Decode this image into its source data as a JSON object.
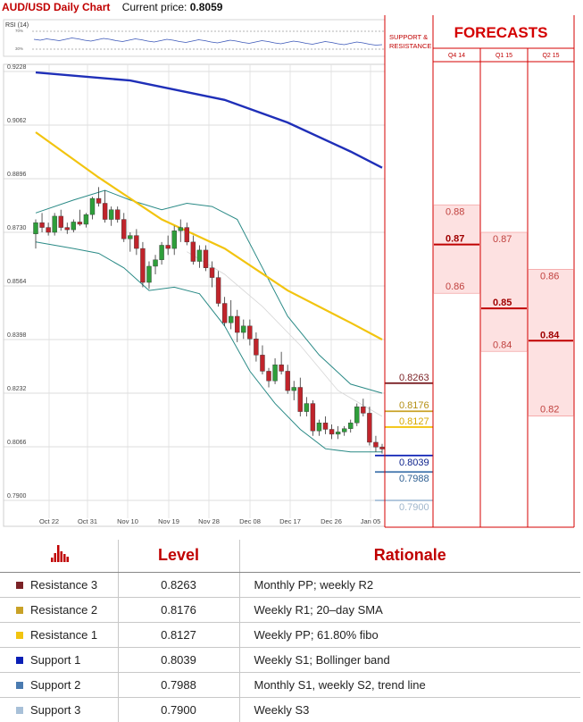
{
  "header": {
    "title": "AUD/USD Daily Chart",
    "price_label": "Current price:",
    "price_value": "0.8059"
  },
  "rsi": {
    "label": "RSI (14)",
    "upper": "70%",
    "lower": "30%"
  },
  "sr_header": [
    "SUPPORT &",
    "RESISTANCE"
  ],
  "forecasts": {
    "title": "FORECASTS",
    "periods": [
      "Q4 14",
      "Q1 15",
      "Q2 15"
    ],
    "columns": [
      {
        "period": "Q4 14",
        "high": "0.88",
        "mid": "0.87",
        "low": "0.86",
        "high_v": 0.8815,
        "mid_v": 0.8698,
        "low_v": 0.858
      },
      {
        "period": "Q1 15",
        "high": "0.87",
        "mid": "0.85",
        "low": "0.84",
        "high_v": 0.873,
        "mid_v": 0.85,
        "low_v": 0.84
      },
      {
        "period": "Q2 15",
        "high": "0.86",
        "mid": "0.84",
        "low": "0.82",
        "high_v": 0.8615,
        "mid_v": 0.84,
        "low_v": 0.82
      }
    ]
  },
  "levels": [
    {
      "name": "Resistance 3",
      "value": "0.8263",
      "rationale": "Monthly PP; weekly R2",
      "color": "#7b2226",
      "text_color": "#7b2226"
    },
    {
      "name": "Resistance 2",
      "value": "0.8176",
      "rationale": "Weekly R1; 20–day SMA",
      "color": "#c9a227",
      "text_color": "#b48f14"
    },
    {
      "name": "Resistance 1",
      "value": "0.8127",
      "rationale": "Weekly PP; 61.80% fibo",
      "color": "#f2c40f",
      "text_color": "#d6a800"
    },
    {
      "name": "Support 1",
      "value": "0.8039",
      "rationale": "Weekly S1; Bollinger band",
      "color": "#0a1fb5",
      "text_color": "#0a1f8a"
    },
    {
      "name": "Support 2",
      "value": "0.7988",
      "rationale": "Monthly S1, weekly S2, trend line",
      "color": "#4a7bb0",
      "text_color": "#2e5f92"
    },
    {
      "name": "Support 3",
      "value": "0.7900",
      "rationale": "Weekly S3",
      "color": "#a8c0d8",
      "text_color": "#9fb6cc"
    }
  ],
  "table": {
    "level_header": "Level",
    "rationale_header": "Rationale",
    "icon": "bar-chart-icon"
  },
  "chart_data": {
    "type": "candlestick",
    "title": "AUD/USD Daily Chart",
    "ylim": [
      0.79,
      0.9228
    ],
    "y_ticks": [
      "0.9228",
      "0.9062",
      "0.8896",
      "0.8730",
      "0.8564",
      "0.8398",
      "0.8232",
      "0.8066",
      "0.7900"
    ],
    "x_ticks": [
      "Oct 22",
      "Oct 31",
      "Nov 10",
      "Nov 19",
      "Nov 28",
      "Dec 08",
      "Dec 17",
      "Dec 26",
      "Jan 05"
    ],
    "candles": [
      [
        0.8725,
        0.877,
        0.868,
        0.876
      ],
      [
        0.876,
        0.879,
        0.873,
        0.8745
      ],
      [
        0.8745,
        0.876,
        0.872,
        0.873
      ],
      [
        0.873,
        0.879,
        0.872,
        0.878
      ],
      [
        0.878,
        0.88,
        0.8735,
        0.8745
      ],
      [
        0.8745,
        0.876,
        0.8725,
        0.8738
      ],
      [
        0.8738,
        0.877,
        0.873,
        0.8762
      ],
      [
        0.8762,
        0.88,
        0.875,
        0.8755
      ],
      [
        0.8755,
        0.879,
        0.8745,
        0.8785
      ],
      [
        0.8785,
        0.884,
        0.877,
        0.8835
      ],
      [
        0.8835,
        0.887,
        0.881,
        0.882
      ],
      [
        0.882,
        0.886,
        0.876,
        0.877
      ],
      [
        0.877,
        0.881,
        0.875,
        0.88
      ],
      [
        0.88,
        0.881,
        0.876,
        0.877
      ],
      [
        0.877,
        0.879,
        0.87,
        0.871
      ],
      [
        0.871,
        0.873,
        0.867,
        0.872
      ],
      [
        0.872,
        0.874,
        0.866,
        0.868
      ],
      [
        0.868,
        0.87,
        0.856,
        0.8575
      ],
      [
        0.8575,
        0.864,
        0.8555,
        0.8625
      ],
      [
        0.8625,
        0.866,
        0.86,
        0.8645
      ],
      [
        0.8645,
        0.87,
        0.863,
        0.869
      ],
      [
        0.869,
        0.872,
        0.866,
        0.868
      ],
      [
        0.868,
        0.875,
        0.866,
        0.8735
      ],
      [
        0.8735,
        0.877,
        0.87,
        0.8745
      ],
      [
        0.8745,
        0.876,
        0.869,
        0.87
      ],
      [
        0.87,
        0.872,
        0.863,
        0.864
      ],
      [
        0.864,
        0.869,
        0.862,
        0.8675
      ],
      [
        0.8675,
        0.869,
        0.861,
        0.862
      ],
      [
        0.862,
        0.864,
        0.856,
        0.859
      ],
      [
        0.859,
        0.861,
        0.85,
        0.851
      ],
      [
        0.851,
        0.853,
        0.844,
        0.845
      ],
      [
        0.845,
        0.852,
        0.843,
        0.847
      ],
      [
        0.847,
        0.849,
        0.839,
        0.842
      ],
      [
        0.842,
        0.846,
        0.84,
        0.844
      ],
      [
        0.844,
        0.846,
        0.838,
        0.84
      ],
      [
        0.84,
        0.842,
        0.833,
        0.835
      ],
      [
        0.835,
        0.838,
        0.829,
        0.83
      ],
      [
        0.83,
        0.831,
        0.825,
        0.827
      ],
      [
        0.827,
        0.834,
        0.826,
        0.832
      ],
      [
        0.832,
        0.836,
        0.829,
        0.83
      ],
      [
        0.83,
        0.832,
        0.823,
        0.824
      ],
      [
        0.824,
        0.827,
        0.821,
        0.825
      ],
      [
        0.825,
        0.828,
        0.816,
        0.8175
      ],
      [
        0.8175,
        0.822,
        0.816,
        0.82
      ],
      [
        0.82,
        0.821,
        0.81,
        0.8115
      ],
      [
        0.8115,
        0.815,
        0.81,
        0.814
      ],
      [
        0.814,
        0.816,
        0.8105,
        0.812
      ],
      [
        0.812,
        0.8135,
        0.809,
        0.8105
      ],
      [
        0.8105,
        0.813,
        0.809,
        0.8112
      ],
      [
        0.8112,
        0.813,
        0.81,
        0.8122
      ],
      [
        0.8122,
        0.815,
        0.811,
        0.814
      ],
      [
        0.814,
        0.82,
        0.813,
        0.819
      ],
      [
        0.819,
        0.8215,
        0.816,
        0.817
      ],
      [
        0.817,
        0.819,
        0.807,
        0.808
      ],
      [
        0.808,
        0.81,
        0.805,
        0.8065
      ],
      [
        0.8065,
        0.8075,
        0.8045,
        0.8059
      ]
    ],
    "sma_yellow": [
      [
        0,
        0.904
      ],
      [
        10,
        0.89
      ],
      [
        20,
        0.877
      ],
      [
        30,
        0.868
      ],
      [
        40,
        0.855
      ],
      [
        50,
        0.845
      ],
      [
        55,
        0.8398
      ]
    ],
    "sma_blue": [
      [
        0,
        0.9225
      ],
      [
        15,
        0.92
      ],
      [
        30,
        0.914
      ],
      [
        40,
        0.907
      ],
      [
        50,
        0.898
      ],
      [
        55,
        0.893
      ]
    ],
    "bb_upper": [
      [
        0,
        0.879
      ],
      [
        6,
        0.883
      ],
      [
        11,
        0.886
      ],
      [
        15,
        0.883
      ],
      [
        20,
        0.88
      ],
      [
        24,
        0.882
      ],
      [
        28,
        0.881
      ],
      [
        32,
        0.877
      ],
      [
        36,
        0.862
      ],
      [
        40,
        0.847
      ],
      [
        45,
        0.835
      ],
      [
        50,
        0.826
      ],
      [
        55,
        0.8232
      ]
    ],
    "bb_lower": [
      [
        0,
        0.87
      ],
      [
        6,
        0.868
      ],
      [
        10,
        0.8665
      ],
      [
        14,
        0.862
      ],
      [
        18,
        0.855
      ],
      [
        22,
        0.856
      ],
      [
        26,
        0.854
      ],
      [
        30,
        0.844
      ],
      [
        34,
        0.83
      ],
      [
        38,
        0.82
      ],
      [
        42,
        0.812
      ],
      [
        46,
        0.806
      ],
      [
        50,
        0.805
      ],
      [
        55,
        0.805
      ]
    ],
    "bb_mid": [
      [
        24,
        0.867
      ],
      [
        30,
        0.86
      ],
      [
        36,
        0.85
      ],
      [
        42,
        0.838
      ],
      [
        48,
        0.824
      ],
      [
        55,
        0.816
      ]
    ],
    "rsi_line": [
      52,
      50,
      53,
      51,
      49,
      52,
      55,
      53,
      50,
      48,
      51,
      54,
      52,
      49,
      47,
      50,
      53,
      51,
      48,
      46,
      49,
      52,
      50,
      47,
      45,
      48,
      51,
      49,
      46,
      44,
      47,
      50,
      48,
      45,
      43,
      46,
      49,
      47,
      44,
      42,
      45,
      48,
      46,
      43,
      41,
      44,
      47,
      45,
      42,
      40,
      43,
      46,
      44,
      41,
      39,
      40
    ]
  }
}
